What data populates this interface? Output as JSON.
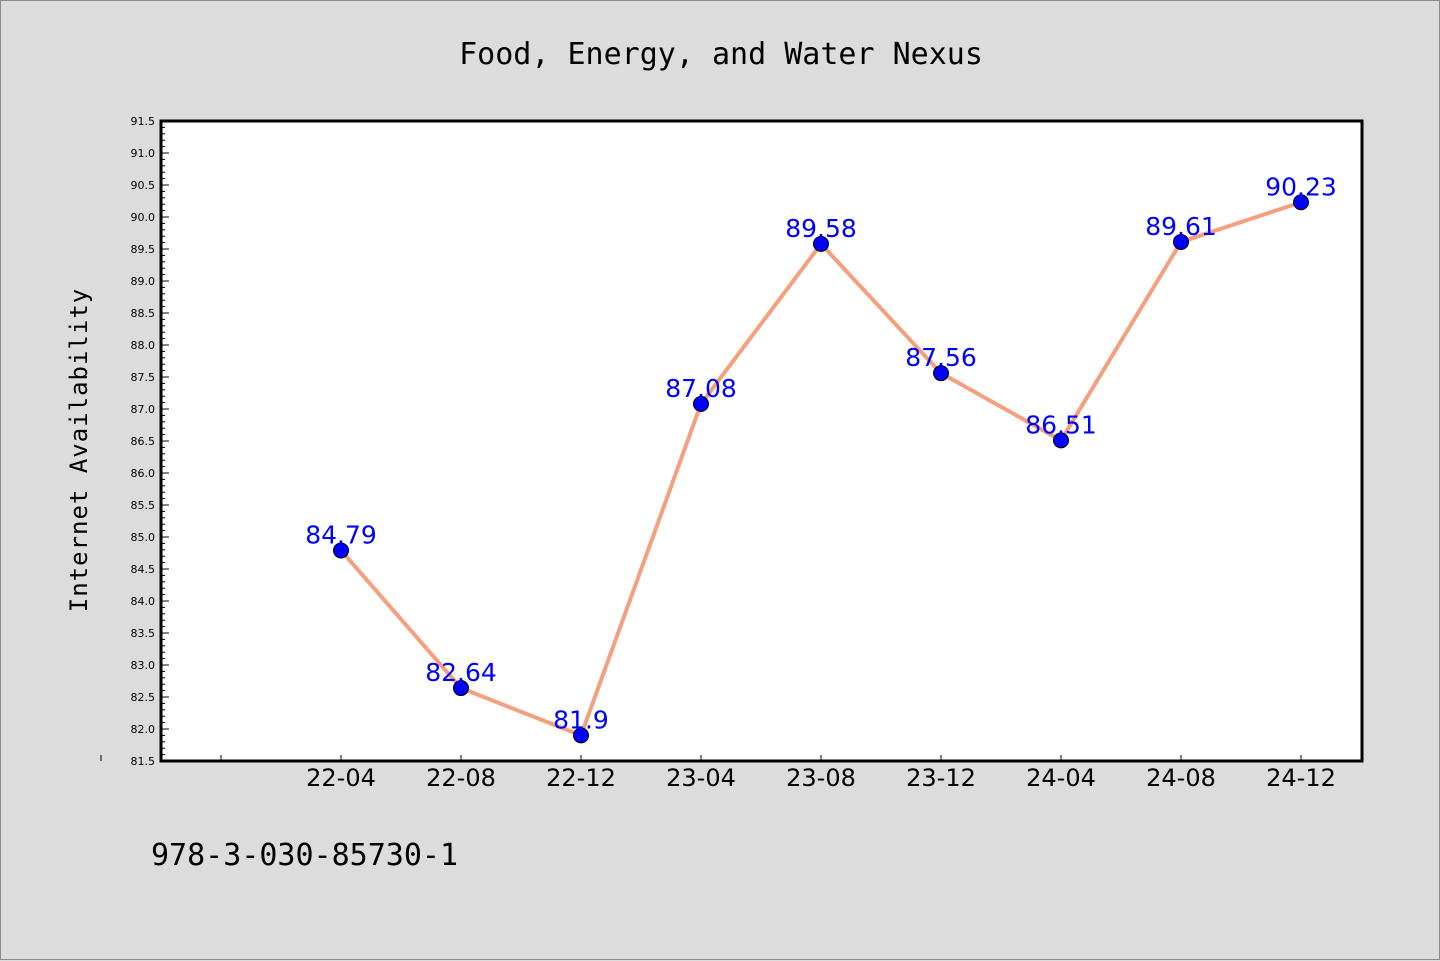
{
  "chart_data": {
    "type": "line",
    "title": "Food, Energy, and Water Nexus",
    "xlabel": "",
    "ylabel": "Internet Availability",
    "categories": [
      "22-04",
      "22-08",
      "22-12",
      "23-04",
      "23-08",
      "23-12",
      "24-04",
      "24-08",
      "24-12"
    ],
    "series": [
      {
        "values": [
          84.79,
          82.64,
          81.9,
          87.08,
          89.58,
          87.56,
          86.51,
          89.61,
          90.23
        ]
      }
    ],
    "data_labels": [
      "84.79",
      "82.64",
      "81.9",
      "87.08",
      "89.58",
      "87.56",
      "86.51",
      "89.61",
      "90.23"
    ],
    "ylim": [
      81.5,
      91.5
    ],
    "ytick_labels": [
      "81.5",
      "82.0",
      "82.5",
      "83.0",
      "83.5",
      "84.0",
      "84.5",
      "85.0",
      "85.5",
      "86.0",
      "86.5",
      "87.0",
      "87.5",
      "88.0",
      "88.5",
      "89.0",
      "89.5",
      "90.0",
      "90.5",
      "91.0",
      "91.5"
    ],
    "grid": false,
    "legend": "none",
    "colors": {
      "line": "#f4a07e",
      "marker": "#0000ff",
      "label": "#0000ff",
      "background": "#dcdcdc",
      "plot_bg": "#ffffff"
    }
  },
  "footer_text": "978-3-030-85730-1"
}
